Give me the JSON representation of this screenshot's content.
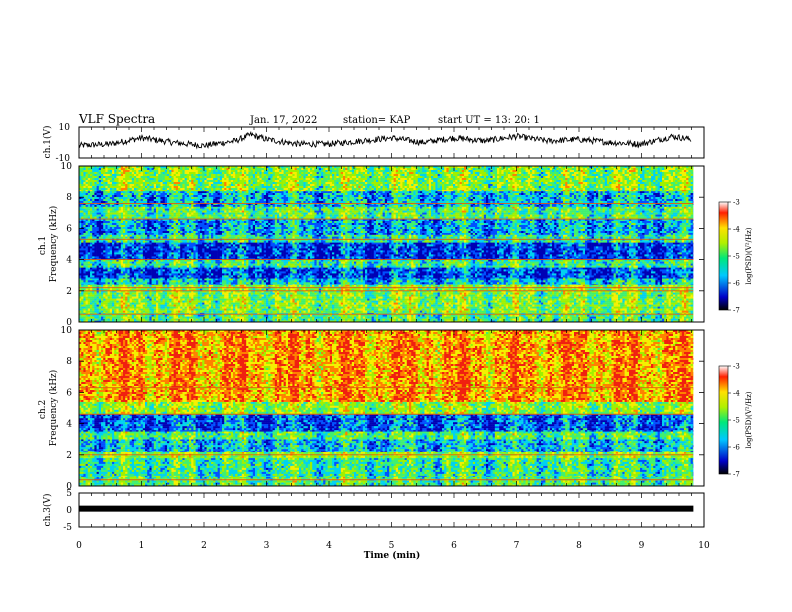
{
  "header": {
    "title": "VLF Spectra",
    "date": "Jan. 17, 2022",
    "station": "station= KAP",
    "start": "start  UT  =   13: 20: 1"
  },
  "colors": {
    "spectrogram": [
      "#0000b4",
      "#0050ff",
      "#00d2f0",
      "#40f070",
      "#a0f000",
      "#f5f000",
      "#ff8000",
      "#f02010"
    ],
    "trace": "#000000"
  },
  "chart_data": [
    {
      "type": "line",
      "name": "ch1-waveform",
      "ylabel": "ch.1(V)",
      "ylim": [
        -10,
        10
      ],
      "yticks": [
        "10",
        "-10"
      ],
      "xlim": [
        0,
        10
      ],
      "x": [
        0,
        0.5,
        1,
        1.5,
        2,
        2.5,
        2.75,
        3,
        3.5,
        4,
        4.5,
        5,
        5.5,
        6,
        6.5,
        7,
        7.5,
        8,
        8.5,
        9,
        9.5,
        9.8
      ],
      "values": [
        -2,
        -1,
        3,
        0,
        -2,
        1,
        5,
        2,
        -1,
        -1,
        1,
        3,
        0,
        3,
        1,
        4,
        1,
        2,
        0,
        -1,
        4,
        2
      ]
    },
    {
      "type": "heatmap",
      "name": "ch1-spectrogram",
      "ylabel": "ch.1\nFrequency (kHz)",
      "xlim": [
        0,
        9.83
      ],
      "ylim": [
        0,
        10
      ],
      "yticks": [
        "0",
        "2",
        "4",
        "6",
        "8",
        "10"
      ],
      "bands": [
        {
          "f": [
            0,
            0.6
          ],
          "level": -5.2
        },
        {
          "f": [
            0.6,
            2.4
          ],
          "level": -4.9
        },
        {
          "f": [
            2.4,
            2.8
          ],
          "level": -5.8
        },
        {
          "f": [
            2.8,
            3.5
          ],
          "level": -6.5
        },
        {
          "f": [
            3.5,
            4.0
          ],
          "level": -5.4
        },
        {
          "f": [
            4.0,
            5.1
          ],
          "level": -6.6
        },
        {
          "f": [
            5.1,
            5.6
          ],
          "level": -5.5
        },
        {
          "f": [
            5.6,
            6.6
          ],
          "level": -6.0
        },
        {
          "f": [
            6.6,
            7.4
          ],
          "level": -5.2
        },
        {
          "f": [
            7.4,
            8.4
          ],
          "level": -5.9
        },
        {
          "f": [
            8.4,
            10
          ],
          "level": -4.9
        }
      ],
      "lines_khz": [
        0.5,
        2.0,
        2.2,
        4.0,
        5.3,
        6.6,
        7.6
      ]
    },
    {
      "type": "heatmap",
      "name": "ch2-spectrogram",
      "ylabel": "ch.2\nFrequency (kHz)",
      "xlim": [
        0,
        9.83
      ],
      "ylim": [
        0,
        10
      ],
      "yticks": [
        "0",
        "2",
        "4",
        "6",
        "8",
        "10"
      ],
      "bands": [
        {
          "f": [
            0,
            0.6
          ],
          "level": -5.2
        },
        {
          "f": [
            0.6,
            1.8
          ],
          "level": -5.4
        },
        {
          "f": [
            1.8,
            2.2
          ],
          "level": -4.8
        },
        {
          "f": [
            2.2,
            3.0
          ],
          "level": -5.9
        },
        {
          "f": [
            3.0,
            3.5
          ],
          "level": -5.2
        },
        {
          "f": [
            3.5,
            4.6
          ],
          "level": -6.4
        },
        {
          "f": [
            4.6,
            5.4
          ],
          "level": -4.8
        },
        {
          "f": [
            5.4,
            10
          ],
          "level": -3.7
        }
      ],
      "lines_khz": [
        0.4,
        2.0,
        4.6,
        6.3
      ]
    },
    {
      "type": "line",
      "name": "ch3-waveform",
      "ylabel": "ch.3(V)",
      "ylim": [
        -5,
        5
      ],
      "yticks": [
        "5",
        "0",
        "-5"
      ],
      "xlim": [
        0,
        10
      ],
      "x": [
        0,
        9.83
      ],
      "values": [
        0.4,
        0.4
      ]
    }
  ],
  "xaxis": {
    "label": "Time (min)",
    "ticks": [
      "0",
      "1",
      "2",
      "3",
      "4",
      "5",
      "6",
      "7",
      "8",
      "9",
      "10"
    ],
    "range": [
      0,
      10
    ]
  },
  "colorbars": [
    {
      "name": "ch1-colorbar",
      "label": "log(PSD)(V²/Hz)",
      "range": [
        -7,
        -3
      ],
      "ticks": [
        "-3",
        "-4",
        "-5",
        "-6",
        "-7"
      ]
    },
    {
      "name": "ch2-colorbar",
      "label": "log(PSD)(V²/Hz)",
      "range": [
        -7,
        -3
      ],
      "ticks": [
        "-3",
        "-4",
        "-5",
        "-6",
        "-7"
      ]
    }
  ]
}
